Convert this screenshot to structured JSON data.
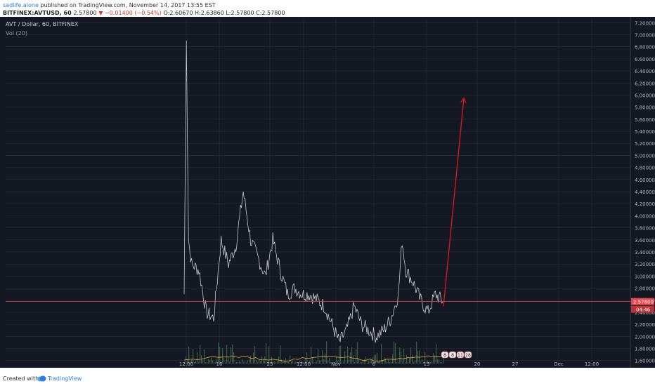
{
  "header": {
    "publisher": "sadlife.alone",
    "published_text": "published on TradingView.com, November 14, 2017 13:55 EST",
    "symbol_line": "BITFINEX:AVTUSD, 60",
    "last": "2.57800",
    "change": "▼ −0.01400 (−0.54%)",
    "ohlc": "O:2.60670 H:2.63860 L:2.57800 C:2.57800"
  },
  "chart_data": {
    "type": "line",
    "title": "AVT / Dollar, 60, BITFINEX",
    "indicator": "Vol (20)",
    "ylim": [
      1.55,
      7.25
    ],
    "y_ticks": [
      "7.20000",
      "7.00000",
      "6.80000",
      "6.60000",
      "6.40000",
      "6.20000",
      "6.00000",
      "5.80000",
      "5.60000",
      "5.40000",
      "5.20000",
      "5.00000",
      "4.80000",
      "4.60000",
      "4.40000",
      "4.20000",
      "4.00000",
      "3.80000",
      "3.60000",
      "3.40000",
      "3.20000",
      "3.00000",
      "2.80000",
      "2.60000",
      "2.40000",
      "2.20000",
      "2.00000",
      "1.80000",
      "1.60000"
    ],
    "x_ticks": [
      "12:00",
      "16",
      "23",
      "12:00",
      "Nov",
      "6",
      "13",
      "20",
      "27",
      "Dec",
      "12:00"
    ],
    "last_price_label": "2.57800",
    "countdown_label": "04:46",
    "volume_badges": [
      "8",
      "8",
      "11",
      "28"
    ],
    "price_series": [
      {
        "t": 0,
        "v": 2.7
      },
      {
        "t": 0.3,
        "v": 7.0
      },
      {
        "t": 0.6,
        "v": 3.6
      },
      {
        "t": 1,
        "v": 3.2
      },
      {
        "t": 2,
        "v": 3.1
      },
      {
        "t": 3,
        "v": 2.4
      },
      {
        "t": 4,
        "v": 2.3
      },
      {
        "t": 5,
        "v": 3.6
      },
      {
        "t": 6,
        "v": 3.2
      },
      {
        "t": 7,
        "v": 3.5
      },
      {
        "t": 8,
        "v": 4.4
      },
      {
        "t": 9,
        "v": 3.6
      },
      {
        "t": 10,
        "v": 3.3
      },
      {
        "t": 11,
        "v": 3.0
      },
      {
        "t": 12,
        "v": 3.6
      },
      {
        "t": 13,
        "v": 3.1
      },
      {
        "t": 14,
        "v": 2.7
      },
      {
        "t": 15,
        "v": 2.8
      },
      {
        "t": 16,
        "v": 2.7
      },
      {
        "t": 17,
        "v": 2.7
      },
      {
        "t": 18,
        "v": 2.6
      },
      {
        "t": 19,
        "v": 2.5
      },
      {
        "t": 20,
        "v": 2.2
      },
      {
        "t": 21,
        "v": 1.9
      },
      {
        "t": 22,
        "v": 2.1
      },
      {
        "t": 23,
        "v": 2.5
      },
      {
        "t": 24,
        "v": 2.2
      },
      {
        "t": 25,
        "v": 2.1
      },
      {
        "t": 26,
        "v": 2.0
      },
      {
        "t": 27,
        "v": 2.1
      },
      {
        "t": 28,
        "v": 2.3
      },
      {
        "t": 29,
        "v": 2.7
      },
      {
        "t": 29.5,
        "v": 3.6
      },
      {
        "t": 30,
        "v": 3.1
      },
      {
        "t": 31,
        "v": 2.9
      },
      {
        "t": 32,
        "v": 2.6
      },
      {
        "t": 33,
        "v": 2.4
      },
      {
        "t": 34,
        "v": 2.7
      },
      {
        "t": 35,
        "v": 2.58
      }
    ],
    "projection": [
      {
        "t": 35,
        "v": 2.5
      },
      {
        "t": 37.5,
        "v": 5.95
      }
    ],
    "colors": {
      "background": "#141823",
      "grid": "#2a2e39",
      "price": "#c9c9cf",
      "projection": "#d01919",
      "last_price": "#e8474d",
      "volume": "#3b5c4a",
      "volume_ma": "#e8a73a"
    }
  },
  "footer": {
    "created_with": "Created with",
    "brand": "TradingView"
  }
}
